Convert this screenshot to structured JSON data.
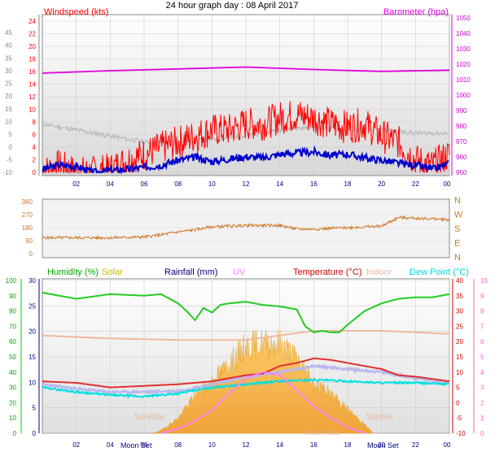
{
  "page": {
    "title": "24 hour graph day : 08 April 2017",
    "colors": {
      "windspeed": "#ff0000",
      "gust": "#0000cc",
      "barometer": "#e000e0",
      "wind_dir": "#d07828",
      "humidity": "#00cc00",
      "solar": "#f0c040",
      "rainfall": "#000080",
      "uv": "#ff80ff",
      "temperature": "#cc0000",
      "indoor": "#f0b8a0",
      "dewpoint": "#00e0e0"
    }
  },
  "chart_data": [
    {
      "type": "line",
      "legend": {
        "left": "Windspeed (kts)",
        "right": "Barometer (hpa)"
      },
      "y_left_ticks": [
        "24",
        "22",
        "20",
        "18",
        "16",
        "14",
        "12",
        "10",
        "8",
        "6",
        "4",
        "2",
        "0"
      ],
      "y_left_outer_ticks": [
        "45",
        "40",
        "35",
        "30",
        "25",
        "20",
        "15",
        "10",
        "5",
        "0",
        "-5",
        "-10"
      ],
      "y_right_ticks": [
        "1050",
        "1040",
        "1030",
        "1020",
        "1010",
        "1000",
        "990",
        "980",
        "970",
        "960",
        "950"
      ],
      "x_ticks": [
        "02",
        "04",
        "06",
        "08",
        "10",
        "12",
        "14",
        "16",
        "18",
        "20",
        "22",
        "00"
      ],
      "ylim": [
        0,
        25
      ],
      "series": [
        {
          "legend_ref": "barometer",
          "hours": [
            0,
            4,
            8,
            12,
            16,
            20,
            24
          ],
          "values": [
            16.4,
            16.8,
            17.1,
            17.4,
            17.0,
            16.7,
            16.9
          ]
        },
        {
          "legend_ref": "windspeed",
          "hours": [
            0,
            1,
            2,
            3,
            4,
            5,
            6,
            7,
            8,
            9,
            10,
            11,
            12,
            13,
            14,
            15,
            16,
            17,
            18,
            19,
            20,
            21,
            22,
            23,
            24
          ],
          "values": [
            0,
            1,
            0,
            0,
            0.5,
            2,
            3,
            4,
            5,
            6,
            7,
            7,
            8,
            8,
            9,
            9.5,
            9,
            8,
            7.5,
            8,
            6,
            5,
            2,
            1,
            3
          ]
        },
        {
          "legend_ref": "gust",
          "hours": [
            0,
            1,
            2,
            3,
            4,
            5,
            6,
            7,
            8,
            9,
            10,
            11,
            12,
            13,
            14,
            15,
            16,
            17,
            18,
            19,
            20,
            21,
            22,
            23,
            24
          ],
          "values": [
            0.5,
            1.2,
            1.0,
            0,
            0.3,
            0.5,
            0.8,
            1.2,
            2.0,
            2.5,
            1.8,
            2.2,
            2.6,
            2.4,
            3.0,
            3.2,
            3.4,
            2.8,
            3.0,
            2.4,
            2.0,
            1.5,
            1.2,
            0.5,
            1.5
          ]
        },
        {
          "legend_ref": "windspeed_avg_grey",
          "hours": [
            0,
            2,
            4,
            6,
            8,
            10,
            12,
            14,
            16,
            18,
            20,
            22,
            24
          ],
          "values": [
            8,
            7,
            6,
            5,
            5,
            5.5,
            6,
            7,
            7.5,
            7,
            7,
            6.5,
            6.5
          ]
        }
      ]
    },
    {
      "type": "scatter",
      "y_ticks": [
        "360",
        "270",
        "180",
        "90",
        "0"
      ],
      "compass_ticks": [
        "N",
        "W",
        "S",
        "E",
        "N"
      ],
      "x_ticks": [],
      "ylim": [
        0,
        360
      ],
      "series": [
        {
          "legend_ref": "wind_dir",
          "hours": [
            0,
            2,
            4,
            6,
            7,
            8,
            9,
            10,
            11,
            12,
            14,
            15,
            16,
            17,
            18,
            19,
            20,
            21,
            22,
            23,
            24
          ],
          "values": [
            110,
            110,
            110,
            115,
            130,
            150,
            165,
            185,
            190,
            195,
            195,
            170,
            170,
            175,
            180,
            185,
            190,
            250,
            245,
            240,
            235
          ]
        }
      ]
    },
    {
      "type": "line",
      "legend": {
        "humidity": "Humidity (%)",
        "solar": "Solar",
        "rainfall": "Rainfall (mm)",
        "uv": "UV",
        "temperature": "Temperature (°C)",
        "indoor": "Indoor",
        "dewpoint": "Dew Point (°C)"
      },
      "humidity_ticks": [
        "100",
        "90",
        "80",
        "70",
        "60",
        "50",
        "40",
        "30",
        "20",
        "10",
        "0"
      ],
      "rain_ticks": [
        "30",
        "25",
        "20",
        "15",
        "10",
        "5",
        "0"
      ],
      "temp_ticks": [
        "40",
        "35",
        "30",
        "25",
        "20",
        "15",
        "10",
        "5",
        "0",
        "-5",
        "-10"
      ],
      "uv_ticks": [
        "10",
        "9",
        "8",
        "7",
        "6",
        "5",
        "4",
        "3",
        "2",
        "1",
        "0"
      ],
      "x_ticks": [
        "02",
        "04",
        "06",
        "08",
        "10",
        "12",
        "14",
        "16",
        "18",
        "20",
        "22",
        "00"
      ],
      "annotations": [
        "SunRise",
        "SunSet",
        "Moon Set",
        "Moon Rise",
        "Moon Set"
      ],
      "series": [
        {
          "legend_ref": "humidity",
          "hours": [
            0,
            2,
            4,
            6,
            7,
            8,
            8.5,
            9,
            9.5,
            10,
            10.5,
            11,
            12,
            13,
            14,
            15,
            15.5,
            16,
            16.5,
            17,
            17.5,
            18,
            19,
            20,
            21,
            22,
            23,
            24
          ],
          "values": [
            92,
            88,
            91,
            90,
            91,
            85,
            80,
            74,
            82,
            79,
            84,
            85,
            86,
            84,
            83,
            81,
            70,
            66,
            67,
            66,
            66,
            71,
            80,
            85,
            88,
            89,
            89,
            91
          ]
        },
        {
          "legend_ref": "indoor",
          "hours": [
            0,
            4,
            8,
            12,
            16,
            20,
            24
          ],
          "values": [
            22,
            21,
            20.5,
            20.5,
            23.5,
            23.5,
            22.5
          ]
        },
        {
          "legend_ref": "temperature",
          "hours": [
            0,
            2,
            4,
            6,
            8,
            10,
            12,
            13,
            14,
            15,
            16,
            17,
            18,
            19,
            20,
            21,
            22,
            24
          ],
          "values": [
            7,
            6.5,
            5,
            5.5,
            6,
            7,
            9,
            9.5,
            12,
            13,
            14.5,
            14,
            13,
            12,
            11,
            9,
            8.5,
            7
          ]
        },
        {
          "legend_ref": "dewpoint",
          "hours": [
            0,
            2,
            4,
            6,
            8,
            10,
            12,
            14,
            16,
            18,
            20,
            22,
            24
          ],
          "values": [
            5,
            3.5,
            2.5,
            2,
            3,
            5,
            6,
            7,
            7.5,
            7,
            6.5,
            6.5,
            6
          ]
        },
        {
          "legend_ref": "solar",
          "hours": [
            6.5,
            7,
            8,
            9,
            10,
            11,
            12,
            13,
            14,
            15,
            16,
            17,
            18,
            19,
            19.5
          ],
          "values": [
            0,
            0.2,
            1.0,
            2.5,
            3.5,
            4.6,
            5.8,
            6.0,
            6.0,
            5.0,
            3.4,
            2.6,
            1.6,
            0.6,
            0
          ]
        },
        {
          "legend_ref": "uv",
          "hours": [
            7,
            8,
            9,
            10,
            11,
            12,
            13,
            14,
            15,
            16,
            17,
            18,
            19
          ],
          "values": [
            0,
            0.3,
            0.8,
            1.5,
            2.6,
            3.6,
            4.0,
            3.8,
            2.8,
            1.8,
            1.0,
            0.4,
            0
          ]
        },
        {
          "legend_ref": "uv_lavender",
          "hours": [
            0,
            2,
            4,
            6,
            8,
            10,
            12,
            14,
            15,
            16,
            17,
            18,
            20,
            22,
            24
          ],
          "values": [
            6,
            4.5,
            3.5,
            3.5,
            3.8,
            6,
            8.5,
            10,
            11,
            12,
            11.5,
            11,
            10,
            8,
            6.5
          ]
        }
      ]
    }
  ]
}
